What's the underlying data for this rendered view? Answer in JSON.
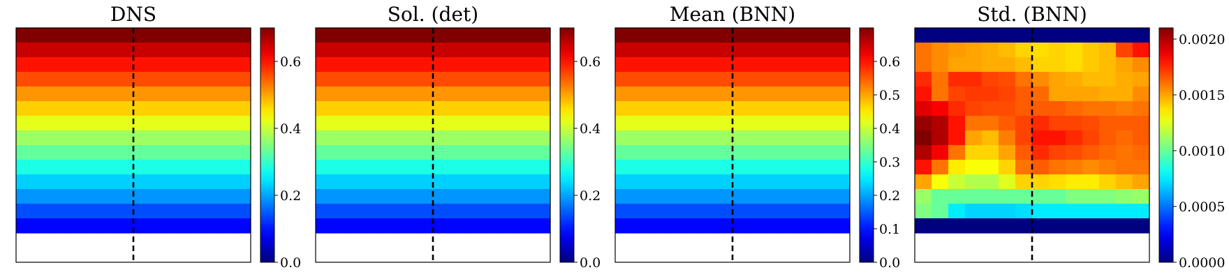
{
  "chart_data": [
    {
      "type": "heatmap",
      "title": "DNS",
      "grid": {
        "rows": 16,
        "cols": 14,
        "data_rows": 14,
        "data_cols": 14
      },
      "row_values": [
        0.7,
        0.65,
        0.6,
        0.56,
        0.51,
        0.47,
        0.42,
        0.37,
        0.33,
        0.28,
        0.23,
        0.19,
        0.14,
        0.09
      ],
      "colorbar": {
        "min": 0.0,
        "max": 0.7,
        "ticks": [
          0.0,
          0.2,
          0.4,
          0.6
        ],
        "tick_labels": [
          "0.0",
          "0.2",
          "0.4",
          "0.6"
        ]
      },
      "dashed_line": {
        "x": 0.5
      }
    },
    {
      "type": "heatmap",
      "title": "Sol. (det)",
      "grid": {
        "rows": 16,
        "cols": 14,
        "data_rows": 14,
        "data_cols": 14
      },
      "row_values": [
        0.7,
        0.65,
        0.6,
        0.56,
        0.51,
        0.47,
        0.42,
        0.37,
        0.33,
        0.28,
        0.23,
        0.19,
        0.14,
        0.09
      ],
      "colorbar": {
        "min": 0.0,
        "max": 0.7,
        "ticks": [
          0.0,
          0.2,
          0.4,
          0.6
        ],
        "tick_labels": [
          "0.0",
          "0.2",
          "0.4",
          "0.6"
        ]
      },
      "dashed_line": {
        "x": 0.5
      }
    },
    {
      "type": "heatmap",
      "title": "Mean (BNN)",
      "grid": {
        "rows": 16,
        "cols": 14,
        "data_rows": 14,
        "data_cols": 14
      },
      "row_values": [
        0.7,
        0.65,
        0.6,
        0.56,
        0.51,
        0.47,
        0.42,
        0.37,
        0.33,
        0.28,
        0.23,
        0.19,
        0.14,
        0.09
      ],
      "colorbar": {
        "min": 0.0,
        "max": 0.7,
        "ticks": [
          0.0,
          0.1,
          0.2,
          0.3,
          0.4,
          0.5,
          0.6
        ],
        "tick_labels": [
          "0.0",
          "0.1",
          "0.2",
          "0.3",
          "0.4",
          "0.5",
          "0.6"
        ]
      },
      "dashed_line": {
        "x": 0.5
      }
    },
    {
      "type": "heatmap",
      "title": "Std. (BNN)",
      "grid": {
        "rows": 16,
        "cols": 14,
        "data_rows": 14,
        "data_cols": 14
      },
      "matrix": [
        [
          0.0,
          0.0,
          0.0,
          0.0,
          0.0,
          0.0,
          0.0,
          0.0,
          0.0,
          0.0,
          0.0,
          0.0,
          0.0,
          0.0
        ],
        [
          0.0016,
          0.00155,
          0.00152,
          0.0015,
          0.00148,
          0.00145,
          0.0014,
          0.00138,
          0.0014,
          0.00138,
          0.00142,
          0.00145,
          0.0017,
          0.0018
        ],
        [
          0.0016,
          0.00155,
          0.0015,
          0.0015,
          0.00148,
          0.00148,
          0.00145,
          0.0014,
          0.0014,
          0.00138,
          0.00142,
          0.00145,
          0.0015,
          0.00155
        ],
        [
          0.00175,
          0.0016,
          0.00175,
          0.00175,
          0.0017,
          0.00168,
          0.0016,
          0.00155,
          0.0015,
          0.00148,
          0.00145,
          0.00145,
          0.00148,
          0.0015
        ],
        [
          0.0018,
          0.0016,
          0.0017,
          0.00172,
          0.00172,
          0.0017,
          0.00165,
          0.00162,
          0.0015,
          0.0015,
          0.0015,
          0.00148,
          0.00148,
          0.00155
        ],
        [
          0.0019,
          0.00185,
          0.00175,
          0.0017,
          0.00168,
          0.00168,
          0.00165,
          0.00165,
          0.00165,
          0.00162,
          0.0016,
          0.0016,
          0.00158,
          0.0016
        ],
        [
          0.00205,
          0.002,
          0.0018,
          0.0016,
          0.0016,
          0.00165,
          0.0017,
          0.00175,
          0.0017,
          0.0017,
          0.00168,
          0.00165,
          0.00165,
          0.00165
        ],
        [
          0.0021,
          0.002,
          0.0018,
          0.0015,
          0.00145,
          0.00158,
          0.0017,
          0.0018,
          0.0018,
          0.00175,
          0.0017,
          0.00165,
          0.00162,
          0.00165
        ],
        [
          0.002,
          0.00185,
          0.0016,
          0.0014,
          0.0014,
          0.0015,
          0.00165,
          0.00175,
          0.0017,
          0.00168,
          0.00165,
          0.00162,
          0.0016,
          0.00162
        ],
        [
          0.0018,
          0.0016,
          0.00135,
          0.0013,
          0.0013,
          0.0014,
          0.0016,
          0.00165,
          0.0016,
          0.00158,
          0.00155,
          0.00158,
          0.0016,
          0.0016
        ],
        [
          0.0015,
          0.0013,
          0.0012,
          0.00115,
          0.00115,
          0.00125,
          0.0014,
          0.0014,
          0.00138,
          0.00135,
          0.00135,
          0.0014,
          0.00145,
          0.0015
        ],
        [
          0.0011,
          0.001,
          0.001,
          0.001,
          0.001,
          0.001,
          0.001,
          0.001,
          0.001,
          0.00105,
          0.00105,
          0.00105,
          0.00108,
          0.0011
        ],
        [
          0.00105,
          0.001,
          0.00075,
          0.0007,
          0.0007,
          0.0007,
          0.00072,
          0.00075,
          0.00075,
          0.00075,
          0.00075,
          0.00075,
          0.00075,
          0.00075
        ],
        [
          0.0,
          0.0,
          0.0,
          0.0,
          0.0,
          0.0,
          0.0,
          0.0,
          0.0,
          0.0,
          0.0,
          0.0,
          0.0,
          0.0
        ]
      ],
      "colorbar": {
        "min": 0.0,
        "max": 0.0021,
        "ticks": [
          0.0,
          0.0005,
          0.001,
          0.0015,
          0.002
        ],
        "tick_labels": [
          "0.0000",
          "0.0005",
          "0.0010",
          "0.0015",
          "0.0020"
        ]
      },
      "dashed_line": {
        "x": 0.5
      }
    }
  ]
}
